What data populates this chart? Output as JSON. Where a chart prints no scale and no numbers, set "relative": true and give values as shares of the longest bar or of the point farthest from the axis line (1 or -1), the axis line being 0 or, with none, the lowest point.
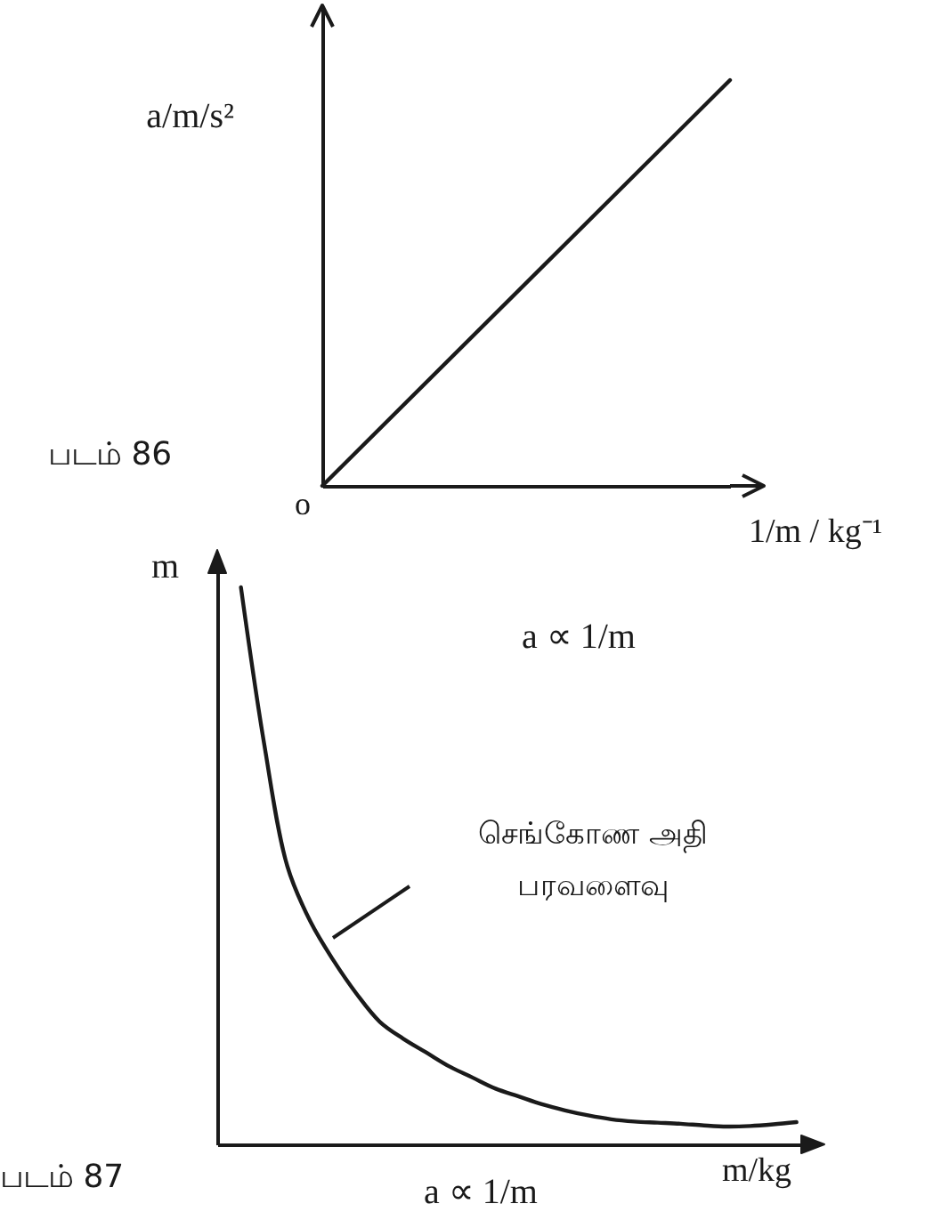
{
  "chart_data": [
    {
      "type": "line",
      "ylabel": "a/m/s²",
      "xlabel": "1/m / kg⁻¹",
      "annotations": [
        "படம் 86",
        "o"
      ],
      "categories": [
        null,
        null
      ],
      "values": [
        0,
        1
      ],
      "color": "#1a1a1a",
      "relative": true,
      "grid": false
    },
    {
      "type": "line",
      "ylabel": "m",
      "xlabel": "m/kg",
      "annotations": [
        "a ∝ 1/m",
        "செங்கோண அதி பரவளைவு",
        "படம் 87",
        "a ∝ 1/m"
      ],
      "categories": [
        null,
        null,
        null,
        null,
        null,
        null,
        null,
        null,
        null,
        null,
        null,
        null,
        null,
        null,
        null,
        null,
        null,
        null,
        null,
        null,
        null,
        null,
        null,
        null,
        null
      ],
      "values": [
        1,
        0.72,
        0.5,
        0.4,
        0.33,
        0.27,
        0.22,
        0.19,
        0.165,
        0.14,
        0.12,
        0.1,
        0.086,
        0.072,
        0.061,
        0.052,
        0.045,
        0.041,
        0.039,
        0.037,
        0.034,
        0.032,
        0.033,
        0.036,
        0.04
      ],
      "color": "#1a1a1a",
      "relative": true,
      "grid": false
    }
  ]
}
